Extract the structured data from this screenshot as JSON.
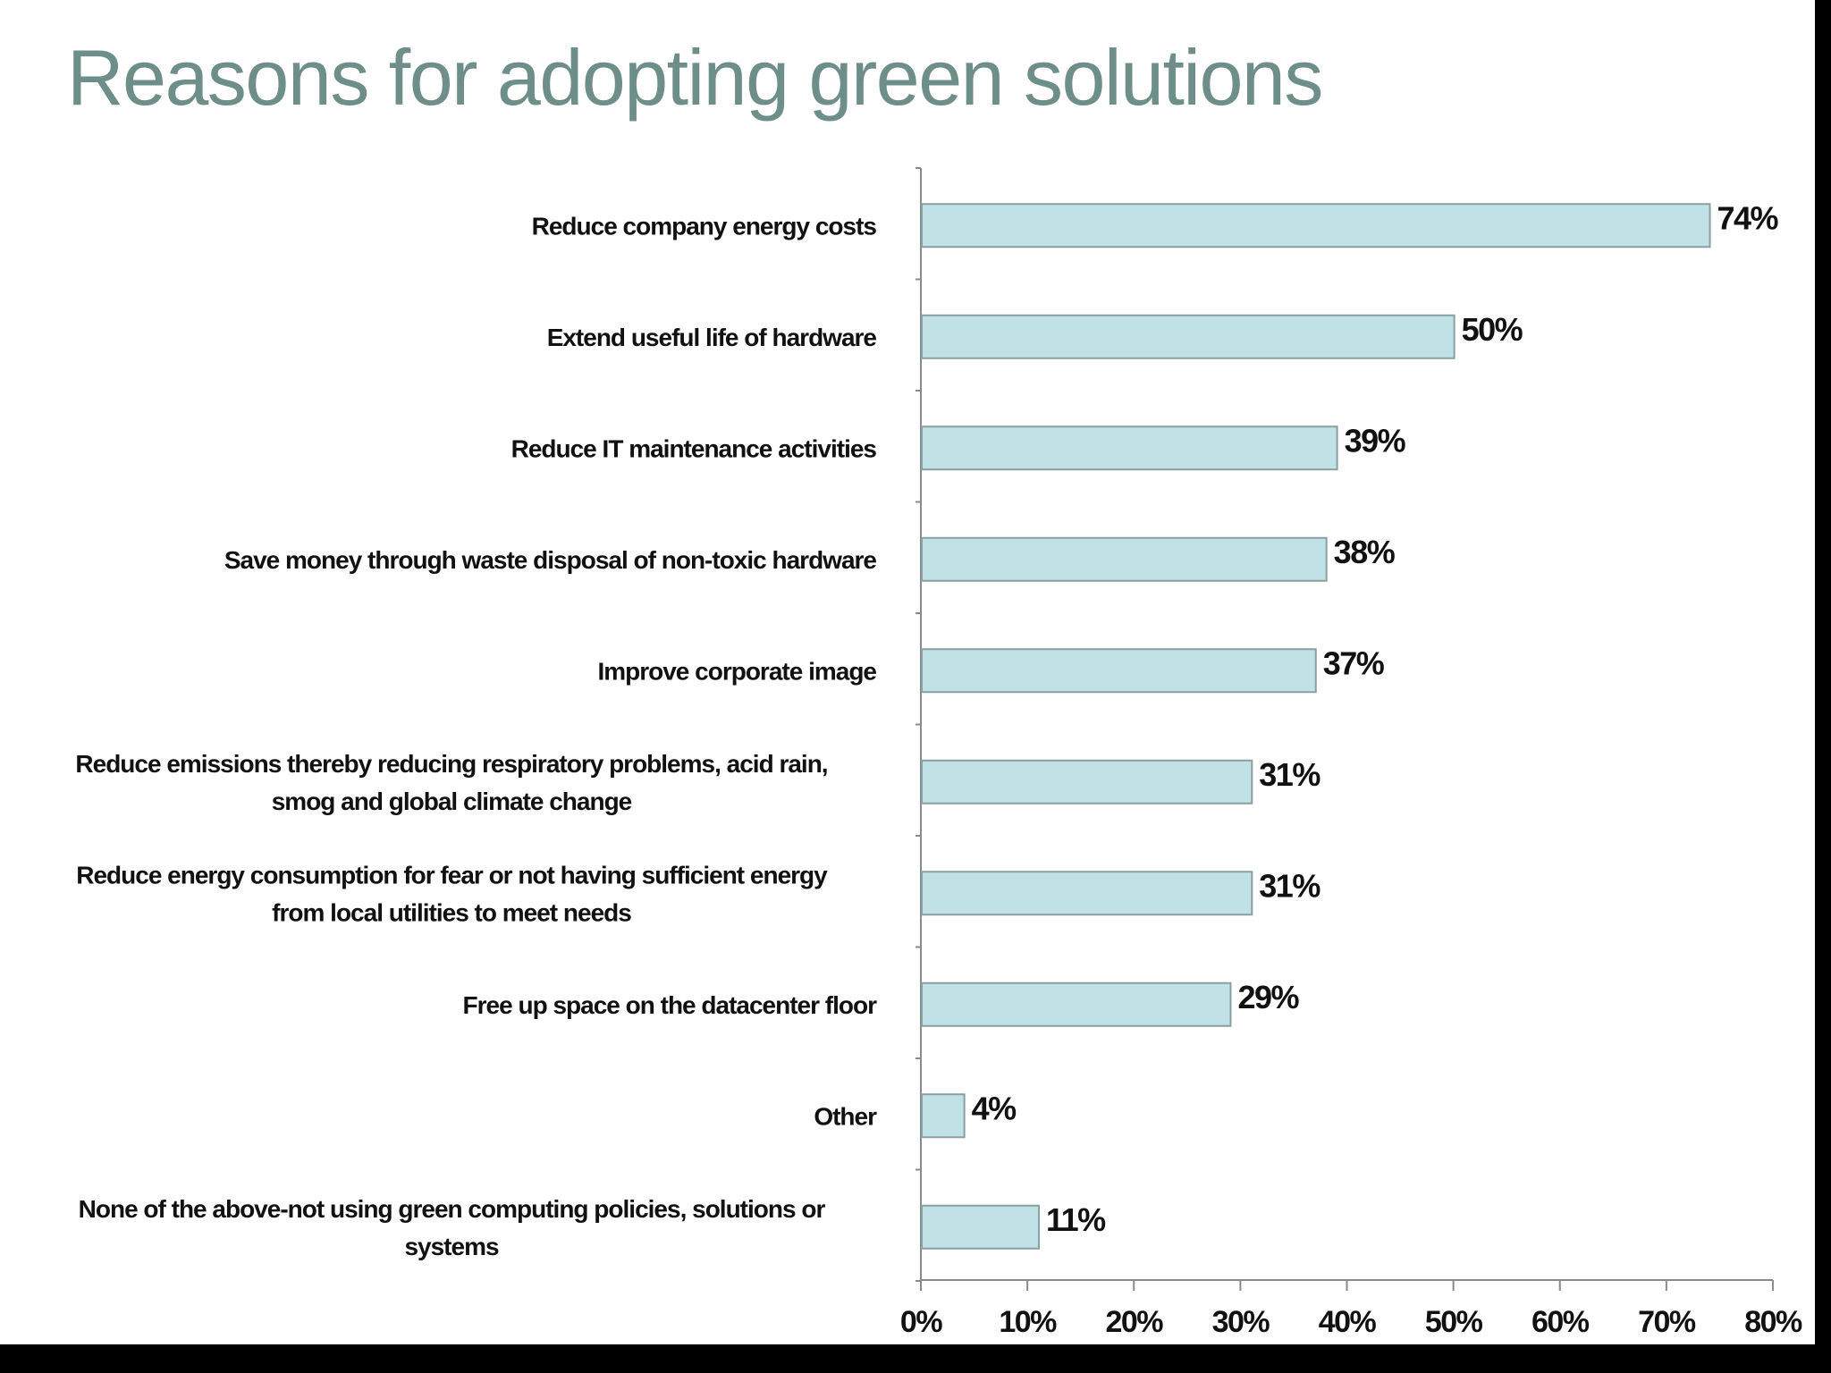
{
  "chart_data": {
    "type": "bar",
    "orientation": "horizontal",
    "title": "Reasons for adopting green solutions",
    "xlabel": "",
    "ylabel": "",
    "categories": [
      "Reduce company energy costs",
      "Extend useful life of hardware",
      "Reduce IT maintenance activities",
      "Save money through waste disposal of non-toxic hardware",
      "Improve corporate image",
      "Reduce emissions thereby reducing respiratory problems, acid rain, smog and global climate change",
      "Reduce energy consumption for fear or not having sufficient energy from local utilities to meet needs",
      "Free up space on the datacenter floor",
      "Other",
      "None of the above-not using green computing policies, solutions or systems"
    ],
    "category_lines": [
      [
        "Reduce company energy costs"
      ],
      [
        "Extend useful life of hardware"
      ],
      [
        "Reduce IT maintenance activities"
      ],
      [
        "Save money through waste disposal of non-toxic hardware"
      ],
      [
        "Improve corporate image"
      ],
      [
        "Reduce emissions thereby reducing respiratory problems, acid rain,",
        "smog and global climate change"
      ],
      [
        "Reduce energy consumption for fear or not having sufficient energy",
        "from local utilities to meet needs"
      ],
      [
        "Free up space on the datacenter floor"
      ],
      [
        "Other"
      ],
      [
        "None of the above-not using green computing policies, solutions or",
        "systems"
      ]
    ],
    "values": [
      74,
      50,
      39,
      38,
      37,
      31,
      31,
      29,
      4,
      11
    ],
    "value_labels": [
      "74%",
      "50%",
      "39%",
      "38%",
      "37%",
      "31%",
      "31%",
      "29%",
      "4%",
      "11%"
    ],
    "xlim": [
      0,
      80
    ],
    "xticks": [
      0,
      10,
      20,
      30,
      40,
      50,
      60,
      70,
      80
    ],
    "xtick_labels": [
      "0%",
      "10%",
      "20%",
      "30%",
      "40%",
      "50%",
      "60%",
      "70%",
      "80%"
    ],
    "grid": false,
    "legend": "none",
    "colors": {
      "bar_fill": "#c0e2e6",
      "bar_stroke": "#8a9fa2",
      "title": "#6e8e8a",
      "axis": "#8a8a8a",
      "text": "#111111",
      "frame": "#000000",
      "background": "#ffffff"
    }
  }
}
